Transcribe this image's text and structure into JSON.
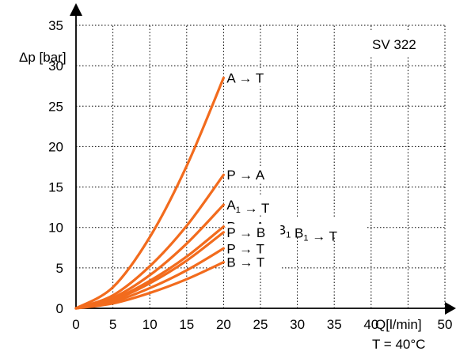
{
  "chart_data": {
    "type": "line",
    "title": "",
    "badge": "SV 322",
    "ylabel": "Δp [bar]",
    "xlabel": "Q[l/min]",
    "note": "T = 40°C",
    "xlim": [
      0,
      50
    ],
    "ylim": [
      0,
      35
    ],
    "x_ticks": [
      0,
      5,
      10,
      15,
      20,
      25,
      30,
      35,
      40,
      50
    ],
    "y_ticks": [
      0,
      5,
      10,
      15,
      20,
      25,
      30,
      35
    ],
    "x_grid": [
      5,
      10,
      15,
      20,
      25,
      30,
      35,
      40,
      45,
      50
    ],
    "y_grid": [
      5,
      10,
      15,
      20,
      25,
      30,
      35
    ],
    "grid": true,
    "curve_color": "#f26b1d",
    "series": [
      {
        "label": {
          "pre": "A",
          "sub": "",
          "post": " → T"
        },
        "x": [
          0,
          5,
          10,
          15,
          20
        ],
        "y": [
          0,
          2.6,
          8.8,
          17.6,
          28.5
        ]
      },
      {
        "label": {
          "pre": "P → A",
          "sub": "",
          "post": ""
        },
        "x": [
          0,
          5,
          10,
          15,
          20
        ],
        "y": [
          0,
          1.6,
          5.2,
          10.2,
          16.5
        ]
      },
      {
        "label": {
          "pre": "A",
          "sub": "1",
          "post": " → T"
        },
        "x": [
          0,
          5,
          10,
          15,
          20
        ],
        "y": [
          0,
          1.3,
          4.1,
          8.0,
          12.8
        ]
      },
      {
        "label": {
          "pre": "P → A",
          "sub": "1",
          "post": ", B",
          "sub2": "1",
          "post2": " B",
          "sub3": "1",
          "post3": " → T"
        },
        "x": [
          0,
          5,
          10,
          15,
          20
        ],
        "y": [
          0,
          1.1,
          3.4,
          6.4,
          10.1
        ]
      },
      {
        "label": {
          "pre": "P → B",
          "sub": "",
          "post": ""
        },
        "x": [
          0,
          5,
          10,
          15,
          20
        ],
        "y": [
          0,
          1.0,
          3.1,
          5.9,
          9.4
        ]
      },
      {
        "label": {
          "pre": "P → T",
          "sub": "",
          "post": ""
        },
        "x": [
          0,
          5,
          10,
          15,
          20
        ],
        "y": [
          0,
          0.8,
          2.5,
          4.7,
          7.4
        ]
      },
      {
        "label": {
          "pre": "B → T",
          "sub": "",
          "post": ""
        },
        "x": [
          0,
          5,
          10,
          15,
          20
        ],
        "y": [
          0,
          0.6,
          1.9,
          3.6,
          5.7
        ]
      }
    ]
  }
}
